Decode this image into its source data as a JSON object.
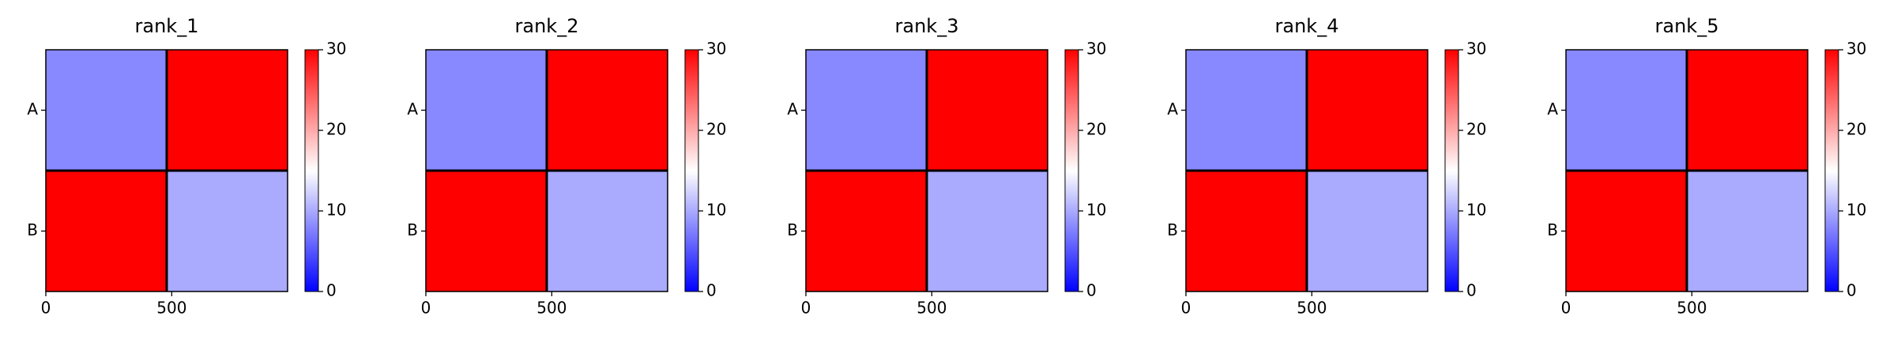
{
  "chart_data": [
    {
      "type": "heatmap",
      "title": "rank_1",
      "x_edges": [
        0,
        480,
        960
      ],
      "y_edges": [
        0,
        480,
        960
      ],
      "values": [
        [
          8,
          30
        ],
        [
          30,
          10
        ]
      ],
      "boundaries": [
        480
      ],
      "colormap": "bwr",
      "clim": [
        0,
        30
      ],
      "cticks": [
        0,
        10,
        20,
        30
      ],
      "xlim": [
        0,
        960
      ],
      "ylim": [
        960,
        0
      ],
      "xticks": [
        0,
        500
      ],
      "yticks": [
        {
          "value": 240,
          "label": "A"
        },
        {
          "value": 720,
          "label": "B"
        }
      ]
    },
    {
      "type": "heatmap",
      "title": "rank_2",
      "x_edges": [
        0,
        480,
        960
      ],
      "y_edges": [
        0,
        480,
        960
      ],
      "values": [
        [
          8,
          30
        ],
        [
          30,
          10
        ]
      ],
      "boundaries": [
        480
      ],
      "colormap": "bwr",
      "clim": [
        0,
        30
      ],
      "cticks": [
        0,
        10,
        20,
        30
      ],
      "xlim": [
        0,
        960
      ],
      "ylim": [
        960,
        0
      ],
      "xticks": [
        0,
        500
      ],
      "yticks": [
        {
          "value": 240,
          "label": "A"
        },
        {
          "value": 720,
          "label": "B"
        }
      ]
    },
    {
      "type": "heatmap",
      "title": "rank_3",
      "x_edges": [
        0,
        480,
        960
      ],
      "y_edges": [
        0,
        480,
        960
      ],
      "values": [
        [
          8,
          30
        ],
        [
          30,
          10
        ]
      ],
      "boundaries": [
        480
      ],
      "colormap": "bwr",
      "clim": [
        0,
        30
      ],
      "cticks": [
        0,
        10,
        20,
        30
      ],
      "xlim": [
        0,
        960
      ],
      "ylim": [
        960,
        0
      ],
      "xticks": [
        0,
        500
      ],
      "yticks": [
        {
          "value": 240,
          "label": "A"
        },
        {
          "value": 720,
          "label": "B"
        }
      ]
    },
    {
      "type": "heatmap",
      "title": "rank_4",
      "x_edges": [
        0,
        480,
        960
      ],
      "y_edges": [
        0,
        480,
        960
      ],
      "values": [
        [
          8,
          30
        ],
        [
          30,
          10
        ]
      ],
      "boundaries": [
        480
      ],
      "colormap": "bwr",
      "clim": [
        0,
        30
      ],
      "cticks": [
        0,
        10,
        20,
        30
      ],
      "xlim": [
        0,
        960
      ],
      "ylim": [
        960,
        0
      ],
      "xticks": [
        0,
        500
      ],
      "yticks": [
        {
          "value": 240,
          "label": "A"
        },
        {
          "value": 720,
          "label": "B"
        }
      ]
    },
    {
      "type": "heatmap",
      "title": "rank_5",
      "x_edges": [
        0,
        480,
        960
      ],
      "y_edges": [
        0,
        480,
        960
      ],
      "values": [
        [
          8,
          30
        ],
        [
          30,
          10
        ]
      ],
      "boundaries": [
        480
      ],
      "colormap": "bwr",
      "clim": [
        0,
        30
      ],
      "cticks": [
        0,
        10,
        20,
        30
      ],
      "xlim": [
        0,
        960
      ],
      "ylim": [
        960,
        0
      ],
      "xticks": [
        0,
        500
      ],
      "yticks": [
        {
          "value": 240,
          "label": "A"
        },
        {
          "value": 720,
          "label": "B"
        }
      ]
    }
  ]
}
